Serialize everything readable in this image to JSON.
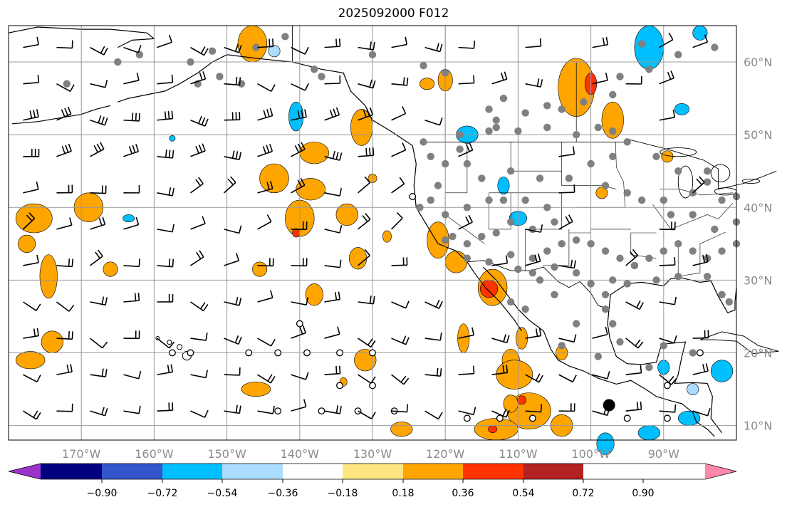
{
  "title": "2025092000 F012",
  "map": {
    "lon_range": [
      -180,
      -80
    ],
    "lat_range": [
      8,
      65
    ],
    "lon_ticks": [
      -170,
      -160,
      -150,
      -140,
      -130,
      -120,
      -110,
      -100,
      -90
    ],
    "lat_ticks": [
      10,
      20,
      30,
      40,
      50,
      60
    ],
    "lon_labels": [
      "170°W",
      "160°W",
      "150°W",
      "140°W",
      "130°W",
      "120°W",
      "110°W",
      "100°W",
      "90°W"
    ],
    "lat_labels": [
      "10°N",
      "20°N",
      "30°N",
      "40°N",
      "50°N",
      "60°N"
    ],
    "grid": true,
    "fields": [
      "wind-barbs",
      "station-dots",
      "filled-contours",
      "coastlines",
      "political-borders"
    ]
  },
  "colorbar": {
    "colors": [
      "#9933cc",
      "#000080",
      "#3355cc",
      "#00bfff",
      "#aaddff",
      "#ffffff",
      "#ffe680",
      "#ffa500",
      "#ff3300",
      "#b22222",
      "#ff88aa"
    ],
    "ticks": [
      "−0.90",
      "−0.72",
      "−0.54",
      "−0.36",
      "−0.18",
      "0.18",
      "0.36",
      "0.54",
      "0.72",
      "0.90"
    ],
    "extend": "both"
  }
}
